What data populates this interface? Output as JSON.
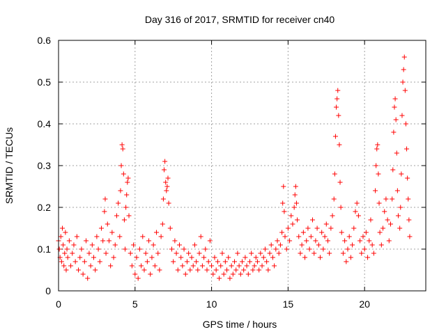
{
  "chart_data": {
    "type": "scatter",
    "title": "Day 316 of 2017, SRMTID for receiver cn40",
    "xlabel": "GPS time / hours",
    "ylabel": "SRMTID / TECUs",
    "xlim": [
      0,
      24
    ],
    "ylim": [
      0,
      0.6
    ],
    "xticks": [
      0,
      5,
      10,
      15,
      20
    ],
    "yticks": [
      0,
      0.1,
      0.2,
      0.3,
      0.4,
      0.5,
      0.6
    ],
    "xtick_labels": [
      "0",
      "5",
      "10",
      "15",
      "20"
    ],
    "ytick_labels": [
      "0",
      "0.1",
      "0.2",
      "0.3",
      "0.4",
      "0.5",
      "0.6"
    ],
    "grid": true,
    "marker": "+",
    "color": "#ff0000",
    "series": [
      {
        "name": "SRMTID",
        "points": [
          [
            0.0,
            0.12
          ],
          [
            0.05,
            0.1
          ],
          [
            0.1,
            0.08
          ],
          [
            0.15,
            0.13
          ],
          [
            0.2,
            0.07
          ],
          [
            0.25,
            0.15
          ],
          [
            0.3,
            0.11
          ],
          [
            0.35,
            0.06
          ],
          [
            0.4,
            0.09
          ],
          [
            0.45,
            0.14
          ],
          [
            0.5,
            0.05
          ],
          [
            0.55,
            0.1
          ],
          [
            0.6,
            0.08
          ],
          [
            0.7,
            0.12
          ],
          [
            0.8,
            0.06
          ],
          [
            0.9,
            0.09
          ],
          [
            1.0,
            0.11
          ],
          [
            1.1,
            0.07
          ],
          [
            1.2,
            0.13
          ],
          [
            1.3,
            0.05
          ],
          [
            1.4,
            0.08
          ],
          [
            1.5,
            0.1
          ],
          [
            1.6,
            0.04
          ],
          [
            1.7,
            0.07
          ],
          [
            1.8,
            0.12
          ],
          [
            1.9,
            0.03
          ],
          [
            2.0,
            0.09
          ],
          [
            2.1,
            0.06
          ],
          [
            2.2,
            0.11
          ],
          [
            2.3,
            0.08
          ],
          [
            2.4,
            0.05
          ],
          [
            2.5,
            0.13
          ],
          [
            2.6,
            0.1
          ],
          [
            2.7,
            0.07
          ],
          [
            2.8,
            0.15
          ],
          [
            2.9,
            0.12
          ],
          [
            3.0,
            0.19
          ],
          [
            3.05,
            0.22
          ],
          [
            3.1,
            0.09
          ],
          [
            3.2,
            0.16
          ],
          [
            3.3,
            0.12
          ],
          [
            3.4,
            0.06
          ],
          [
            3.5,
            0.14
          ],
          [
            3.6,
            0.08
          ],
          [
            3.7,
            0.11
          ],
          [
            3.8,
            0.18
          ],
          [
            3.9,
            0.21
          ],
          [
            4.0,
            0.13
          ],
          [
            4.05,
            0.24
          ],
          [
            4.1,
            0.3
          ],
          [
            4.15,
            0.35
          ],
          [
            4.2,
            0.34
          ],
          [
            4.25,
            0.28
          ],
          [
            4.3,
            0.17
          ],
          [
            4.35,
            0.1
          ],
          [
            4.4,
            0.2
          ],
          [
            4.45,
            0.23
          ],
          [
            4.5,
            0.26
          ],
          [
            4.55,
            0.27
          ],
          [
            4.6,
            0.18
          ],
          [
            4.7,
            0.09
          ],
          [
            4.8,
            0.06
          ],
          [
            4.9,
            0.11
          ],
          [
            5.0,
            0.04
          ],
          [
            5.1,
            0.08
          ],
          [
            5.2,
            0.03
          ],
          [
            5.3,
            0.1
          ],
          [
            5.4,
            0.06
          ],
          [
            5.5,
            0.13
          ],
          [
            5.6,
            0.05
          ],
          [
            5.7,
            0.09
          ],
          [
            5.8,
            0.07
          ],
          [
            5.9,
            0.12
          ],
          [
            6.0,
            0.04
          ],
          [
            6.1,
            0.08
          ],
          [
            6.2,
            0.11
          ],
          [
            6.3,
            0.06
          ],
          [
            6.4,
            0.14
          ],
          [
            6.5,
            0.09
          ],
          [
            6.6,
            0.05
          ],
          [
            6.7,
            0.13
          ],
          [
            6.8,
            0.16
          ],
          [
            6.85,
            0.22
          ],
          [
            6.9,
            0.29
          ],
          [
            6.95,
            0.31
          ],
          [
            7.0,
            0.26
          ],
          [
            7.05,
            0.24
          ],
          [
            7.1,
            0.25
          ],
          [
            7.15,
            0.27
          ],
          [
            7.2,
            0.21
          ],
          [
            7.3,
            0.15
          ],
          [
            7.4,
            0.1
          ],
          [
            7.5,
            0.07
          ],
          [
            7.6,
            0.12
          ],
          [
            7.7,
            0.09
          ],
          [
            7.8,
            0.05
          ],
          [
            7.9,
            0.11
          ],
          [
            8.0,
            0.08
          ],
          [
            8.1,
            0.06
          ],
          [
            8.2,
            0.1
          ],
          [
            8.3,
            0.04
          ],
          [
            8.4,
            0.07
          ],
          [
            8.5,
            0.09
          ],
          [
            8.6,
            0.05
          ],
          [
            8.7,
            0.08
          ],
          [
            8.8,
            0.06
          ],
          [
            8.9,
            0.11
          ],
          [
            9.0,
            0.07
          ],
          [
            9.1,
            0.05
          ],
          [
            9.2,
            0.09
          ],
          [
            9.3,
            0.13
          ],
          [
            9.4,
            0.06
          ],
          [
            9.5,
            0.08
          ],
          [
            9.6,
            0.1
          ],
          [
            9.7,
            0.05
          ],
          [
            9.8,
            0.07
          ],
          [
            9.9,
            0.12
          ],
          [
            10.0,
            0.06
          ],
          [
            10.1,
            0.04
          ],
          [
            10.2,
            0.08
          ],
          [
            10.3,
            0.05
          ],
          [
            10.4,
            0.07
          ],
          [
            10.5,
            0.03
          ],
          [
            10.6,
            0.06
          ],
          [
            10.7,
            0.09
          ],
          [
            10.8,
            0.04
          ],
          [
            10.9,
            0.07
          ],
          [
            11.0,
            0.05
          ],
          [
            11.1,
            0.08
          ],
          [
            11.2,
            0.03
          ],
          [
            11.3,
            0.06
          ],
          [
            11.4,
            0.04
          ],
          [
            11.5,
            0.07
          ],
          [
            11.6,
            0.05
          ],
          [
            11.7,
            0.09
          ],
          [
            11.8,
            0.06
          ],
          [
            11.9,
            0.04
          ],
          [
            12.0,
            0.07
          ],
          [
            12.1,
            0.05
          ],
          [
            12.2,
            0.08
          ],
          [
            12.3,
            0.06
          ],
          [
            12.4,
            0.04
          ],
          [
            12.5,
            0.07
          ],
          [
            12.6,
            0.09
          ],
          [
            12.7,
            0.05
          ],
          [
            12.8,
            0.06
          ],
          [
            12.9,
            0.08
          ],
          [
            13.0,
            0.07
          ],
          [
            13.1,
            0.05
          ],
          [
            13.2,
            0.09
          ],
          [
            13.3,
            0.06
          ],
          [
            13.4,
            0.08
          ],
          [
            13.5,
            0.1
          ],
          [
            13.6,
            0.07
          ],
          [
            13.7,
            0.05
          ],
          [
            13.8,
            0.09
          ],
          [
            13.9,
            0.11
          ],
          [
            14.0,
            0.08
          ],
          [
            14.1,
            0.06
          ],
          [
            14.2,
            0.1
          ],
          [
            14.3,
            0.12
          ],
          [
            14.4,
            0.09
          ],
          [
            14.5,
            0.11
          ],
          [
            14.6,
            0.14
          ],
          [
            14.65,
            0.21
          ],
          [
            14.7,
            0.25
          ],
          [
            14.75,
            0.19
          ],
          [
            14.8,
            0.13
          ],
          [
            14.9,
            0.1
          ],
          [
            15.0,
            0.15
          ],
          [
            15.1,
            0.12
          ],
          [
            15.2,
            0.18
          ],
          [
            15.3,
            0.16
          ],
          [
            15.4,
            0.2
          ],
          [
            15.45,
            0.23
          ],
          [
            15.5,
            0.25
          ],
          [
            15.55,
            0.21
          ],
          [
            15.6,
            0.17
          ],
          [
            15.7,
            0.13
          ],
          [
            15.8,
            0.09
          ],
          [
            15.9,
            0.11
          ],
          [
            16.0,
            0.14
          ],
          [
            16.1,
            0.08
          ],
          [
            16.2,
            0.12
          ],
          [
            16.3,
            0.15
          ],
          [
            16.4,
            0.1
          ],
          [
            16.5,
            0.13
          ],
          [
            16.6,
            0.17
          ],
          [
            16.7,
            0.09
          ],
          [
            16.8,
            0.12
          ],
          [
            16.9,
            0.15
          ],
          [
            17.0,
            0.11
          ],
          [
            17.1,
            0.08
          ],
          [
            17.2,
            0.14
          ],
          [
            17.3,
            0.1
          ],
          [
            17.4,
            0.13
          ],
          [
            17.5,
            0.16
          ],
          [
            17.6,
            0.12
          ],
          [
            17.7,
            0.09
          ],
          [
            17.8,
            0.15
          ],
          [
            17.9,
            0.18
          ],
          [
            18.0,
            0.22
          ],
          [
            18.05,
            0.28
          ],
          [
            18.1,
            0.37
          ],
          [
            18.15,
            0.44
          ],
          [
            18.2,
            0.46
          ],
          [
            18.25,
            0.48
          ],
          [
            18.3,
            0.42
          ],
          [
            18.35,
            0.35
          ],
          [
            18.4,
            0.26
          ],
          [
            18.45,
            0.2
          ],
          [
            18.5,
            0.14
          ],
          [
            18.6,
            0.09
          ],
          [
            18.7,
            0.12
          ],
          [
            18.8,
            0.07
          ],
          [
            18.9,
            0.1
          ],
          [
            19.0,
            0.13
          ],
          [
            19.1,
            0.08
          ],
          [
            19.2,
            0.11
          ],
          [
            19.3,
            0.15
          ],
          [
            19.4,
            0.19
          ],
          [
            19.5,
            0.21
          ],
          [
            19.6,
            0.18
          ],
          [
            19.7,
            0.12
          ],
          [
            19.8,
            0.09
          ],
          [
            19.9,
            0.13
          ],
          [
            20.0,
            0.1
          ],
          [
            20.1,
            0.14
          ],
          [
            20.2,
            0.08
          ],
          [
            20.3,
            0.12
          ],
          [
            20.4,
            0.17
          ],
          [
            20.5,
            0.11
          ],
          [
            20.6,
            0.09
          ],
          [
            20.7,
            0.24
          ],
          [
            20.75,
            0.3
          ],
          [
            20.8,
            0.34
          ],
          [
            20.85,
            0.35
          ],
          [
            20.9,
            0.28
          ],
          [
            20.95,
            0.21
          ],
          [
            21.0,
            0.14
          ],
          [
            21.1,
            0.11
          ],
          [
            21.2,
            0.15
          ],
          [
            21.3,
            0.19
          ],
          [
            21.4,
            0.22
          ],
          [
            21.5,
            0.17
          ],
          [
            21.6,
            0.12
          ],
          [
            21.7,
            0.16
          ],
          [
            21.8,
            0.22
          ],
          [
            21.85,
            0.29
          ],
          [
            21.9,
            0.38
          ],
          [
            21.95,
            0.44
          ],
          [
            22.0,
            0.46
          ],
          [
            22.05,
            0.41
          ],
          [
            22.1,
            0.33
          ],
          [
            22.15,
            0.24
          ],
          [
            22.2,
            0.18
          ],
          [
            22.3,
            0.15
          ],
          [
            22.35,
            0.2
          ],
          [
            22.4,
            0.28
          ],
          [
            22.45,
            0.42
          ],
          [
            22.5,
            0.5
          ],
          [
            22.55,
            0.53
          ],
          [
            22.6,
            0.56
          ],
          [
            22.65,
            0.48
          ],
          [
            22.7,
            0.4
          ],
          [
            22.75,
            0.34
          ],
          [
            22.8,
            0.27
          ],
          [
            22.85,
            0.22
          ],
          [
            22.9,
            0.17
          ],
          [
            22.95,
            0.13
          ]
        ]
      }
    ]
  }
}
